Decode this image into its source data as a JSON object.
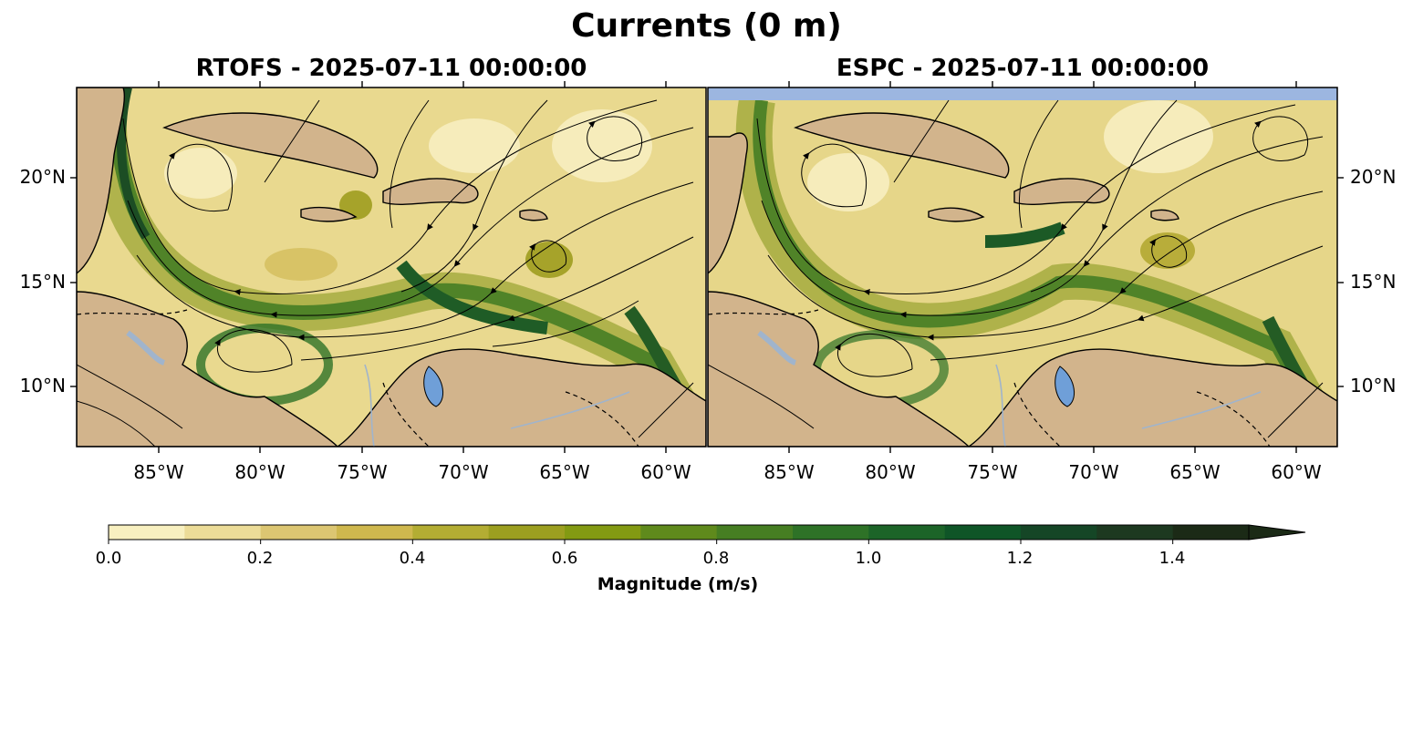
{
  "figure": {
    "title": "Currents (0 m)"
  },
  "panels": [
    {
      "title": "RTOFS - 2025-07-11 00:00:00"
    },
    {
      "title": "ESPC - 2025-07-11 00:00:00"
    }
  ],
  "axes": {
    "lat_ticks": [
      "20°N",
      "15°N",
      "10°N"
    ],
    "lon_ticks": [
      "85°W",
      "80°W",
      "75°W",
      "70°W",
      "65°W",
      "60°W"
    ]
  },
  "colorbar": {
    "label": "Magnitude (m/s)",
    "ticks": [
      "0.0",
      "0.2",
      "0.4",
      "0.6",
      "0.8",
      "1.0",
      "1.2",
      "1.4"
    ],
    "bounds": [
      0,
      1.5
    ],
    "extend": "max",
    "colors": [
      "#f8f0c0",
      "#ecdc98",
      "#dcc672",
      "#cfb84e",
      "#b3ad33",
      "#9c9f20",
      "#839a12",
      "#5f8a1c",
      "#467e22",
      "#2e7227",
      "#1c6428",
      "#0f5527",
      "#154626",
      "#1d3920",
      "#1b2a16"
    ]
  },
  "colors": {
    "land": "#d2b48c",
    "lake": "#6f9fd8",
    "river": "#a0b4cc",
    "ocean_low": "#f5e9b3"
  }
}
